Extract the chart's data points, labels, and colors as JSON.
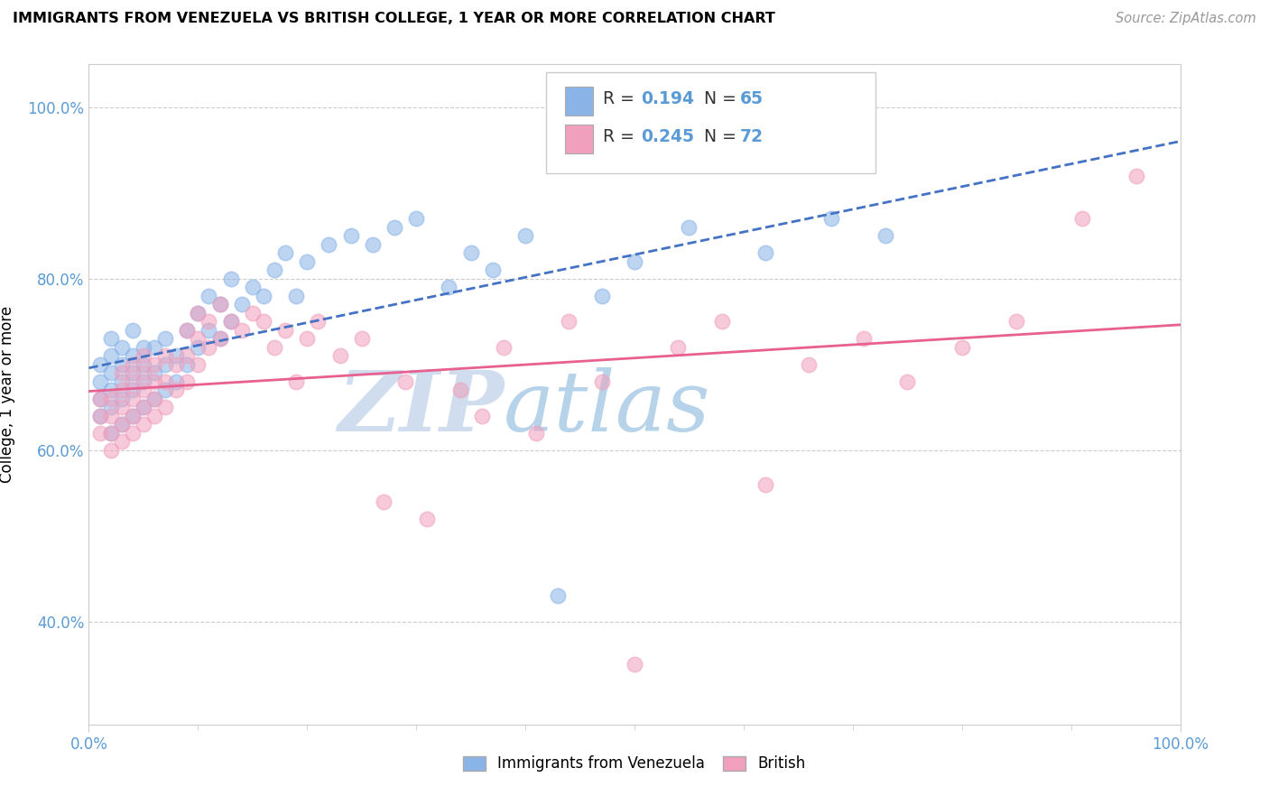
{
  "title": "IMMIGRANTS FROM VENEZUELA VS BRITISH COLLEGE, 1 YEAR OR MORE CORRELATION CHART",
  "source_text": "Source: ZipAtlas.com",
  "ylabel": "College, 1 year or more",
  "xlim": [
    0.0,
    1.0
  ],
  "ylim": [
    0.28,
    1.05
  ],
  "x_tick_labels": [
    "0.0%",
    "100.0%"
  ],
  "y_tick_labels": [
    "40.0%",
    "60.0%",
    "80.0%",
    "100.0%"
  ],
  "y_tick_positions": [
    0.4,
    0.6,
    0.8,
    1.0
  ],
  "watermark_zip": "ZIP",
  "watermark_atlas": "atlas",
  "legend_r1": "0.194",
  "legend_n1": "65",
  "legend_r2": "0.245",
  "legend_n2": "72",
  "color_blue": "#8ab4e8",
  "color_pink": "#f0a0bc",
  "color_blue_line": "#4472c4",
  "color_pink_line": "#e86090",
  "color_gray_dash": "#aaaaaa",
  "scatter_blue_x": [
    0.01,
    0.01,
    0.01,
    0.01,
    0.02,
    0.02,
    0.02,
    0.02,
    0.02,
    0.02,
    0.03,
    0.03,
    0.03,
    0.03,
    0.03,
    0.04,
    0.04,
    0.04,
    0.04,
    0.04,
    0.05,
    0.05,
    0.05,
    0.05,
    0.06,
    0.06,
    0.06,
    0.07,
    0.07,
    0.07,
    0.08,
    0.08,
    0.09,
    0.09,
    0.1,
    0.1,
    0.11,
    0.11,
    0.12,
    0.12,
    0.13,
    0.13,
    0.14,
    0.15,
    0.16,
    0.17,
    0.18,
    0.19,
    0.2,
    0.22,
    0.24,
    0.26,
    0.28,
    0.3,
    0.33,
    0.35,
    0.37,
    0.4,
    0.43,
    0.47,
    0.5,
    0.55,
    0.62,
    0.68,
    0.73
  ],
  "scatter_blue_y": [
    0.64,
    0.66,
    0.68,
    0.7,
    0.62,
    0.65,
    0.67,
    0.69,
    0.71,
    0.73,
    0.63,
    0.66,
    0.68,
    0.7,
    0.72,
    0.64,
    0.67,
    0.69,
    0.71,
    0.74,
    0.65,
    0.68,
    0.7,
    0.72,
    0.66,
    0.69,
    0.72,
    0.67,
    0.7,
    0.73,
    0.68,
    0.71,
    0.7,
    0.74,
    0.72,
    0.76,
    0.74,
    0.78,
    0.73,
    0.77,
    0.75,
    0.8,
    0.77,
    0.79,
    0.78,
    0.81,
    0.83,
    0.78,
    0.82,
    0.84,
    0.85,
    0.84,
    0.86,
    0.87,
    0.79,
    0.83,
    0.81,
    0.85,
    0.43,
    0.78,
    0.82,
    0.86,
    0.83,
    0.87,
    0.85
  ],
  "scatter_pink_x": [
    0.01,
    0.01,
    0.01,
    0.02,
    0.02,
    0.02,
    0.02,
    0.03,
    0.03,
    0.03,
    0.03,
    0.03,
    0.04,
    0.04,
    0.04,
    0.04,
    0.04,
    0.05,
    0.05,
    0.05,
    0.05,
    0.05,
    0.06,
    0.06,
    0.06,
    0.06,
    0.07,
    0.07,
    0.07,
    0.08,
    0.08,
    0.09,
    0.09,
    0.09,
    0.1,
    0.1,
    0.1,
    0.11,
    0.11,
    0.12,
    0.12,
    0.13,
    0.14,
    0.15,
    0.16,
    0.17,
    0.18,
    0.19,
    0.2,
    0.21,
    0.23,
    0.25,
    0.27,
    0.29,
    0.31,
    0.34,
    0.36,
    0.38,
    0.41,
    0.44,
    0.47,
    0.5,
    0.54,
    0.58,
    0.62,
    0.66,
    0.71,
    0.75,
    0.8,
    0.85,
    0.91,
    0.96
  ],
  "scatter_pink_y": [
    0.62,
    0.64,
    0.66,
    0.6,
    0.62,
    0.64,
    0.66,
    0.61,
    0.63,
    0.65,
    0.67,
    0.69,
    0.62,
    0.64,
    0.66,
    0.68,
    0.7,
    0.63,
    0.65,
    0.67,
    0.69,
    0.71,
    0.64,
    0.66,
    0.68,
    0.7,
    0.65,
    0.68,
    0.71,
    0.67,
    0.7,
    0.68,
    0.71,
    0.74,
    0.7,
    0.73,
    0.76,
    0.72,
    0.75,
    0.73,
    0.77,
    0.75,
    0.74,
    0.76,
    0.75,
    0.72,
    0.74,
    0.68,
    0.73,
    0.75,
    0.71,
    0.73,
    0.54,
    0.68,
    0.52,
    0.67,
    0.64,
    0.72,
    0.62,
    0.75,
    0.68,
    0.35,
    0.72,
    0.75,
    0.56,
    0.7,
    0.73,
    0.68,
    0.72,
    0.75,
    0.87,
    0.92
  ]
}
